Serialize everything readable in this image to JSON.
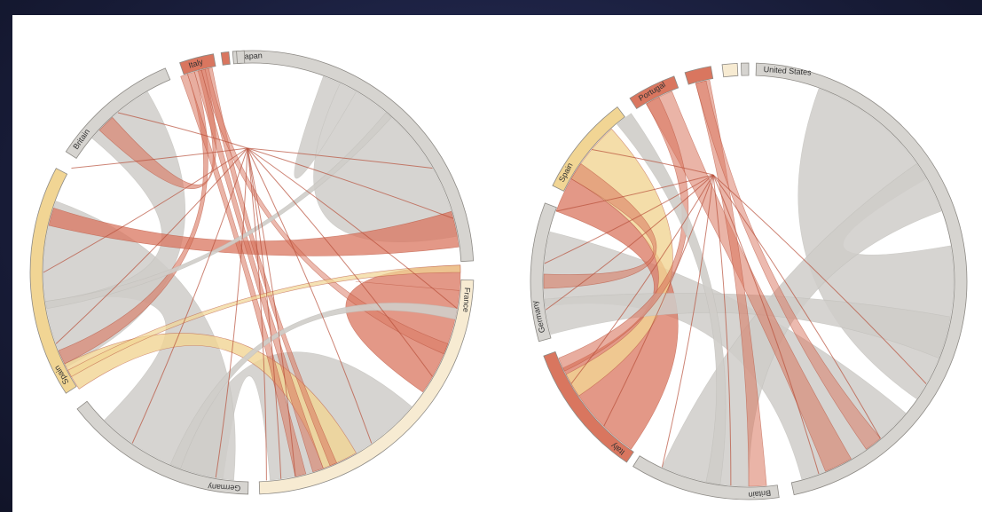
{
  "colors": {
    "background": "#1c2140",
    "panel": "#ffffff",
    "gray_arc": "#d6d4d0",
    "gray_ribbon": "#cfcdc9",
    "red": "#d9765f",
    "dark_red": "#b8503a",
    "yellow": "#f1d594",
    "pale": "#f7ebd2"
  },
  "diagrams": [
    {
      "name": "left",
      "groups": [
        {
          "label": "Japan",
          "color_key": "gray_arc"
        },
        {
          "label": "France",
          "color_key": "pale"
        },
        {
          "label": "Germany",
          "color_key": "gray_arc"
        },
        {
          "label": "Spain",
          "color_key": "yellow"
        },
        {
          "label": "Britain",
          "color_key": "gray_arc"
        },
        {
          "label": "Italy",
          "color_key": "red"
        }
      ]
    },
    {
      "name": "right",
      "groups": [
        {
          "label": "United States",
          "color_key": "gray_arc"
        },
        {
          "label": "Britain",
          "color_key": "gray_arc"
        },
        {
          "label": "Italy",
          "color_key": "red"
        },
        {
          "label": "Germany",
          "color_key": "gray_arc"
        },
        {
          "label": "Spain",
          "color_key": "yellow"
        },
        {
          "label": "Portugal",
          "color_key": "red"
        }
      ]
    }
  ]
}
